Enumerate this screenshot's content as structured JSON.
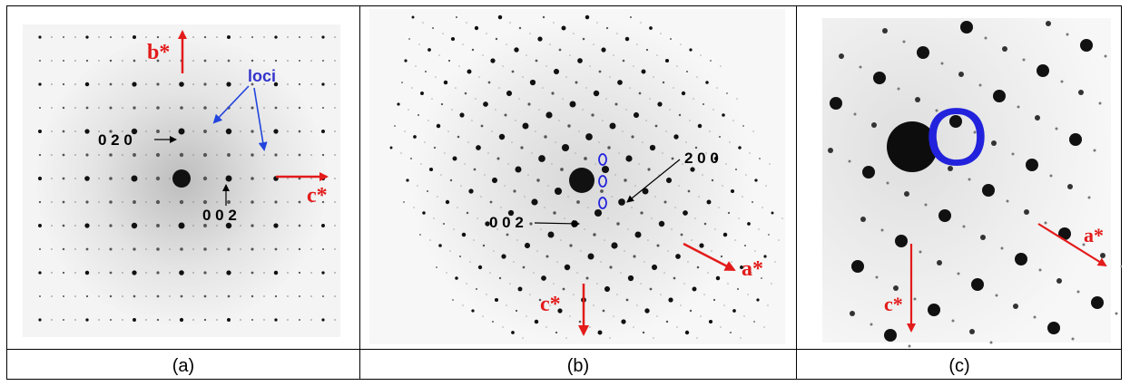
{
  "figure": {
    "panels": [
      {
        "caption": "(a)",
        "labels": {
          "b_star": "b*",
          "c_star": "c*",
          "loci": "loci",
          "index_020": "0 2 0",
          "index_002": "0 0 2"
        }
      },
      {
        "caption": "(b)",
        "labels": {
          "index_200": "2 0 0",
          "index_002": "0 0 2",
          "a_star": "a*",
          "c_star": "c*"
        }
      },
      {
        "caption": "(c)",
        "labels": {
          "big_o": "O",
          "a_star": "a*",
          "c_star": "c*"
        }
      }
    ],
    "colors": {
      "arrow_red": "#e31b1b",
      "loci_blue": "#3333cc",
      "marker_blue": "#2222dd",
      "spot_black": "#111111"
    }
  }
}
